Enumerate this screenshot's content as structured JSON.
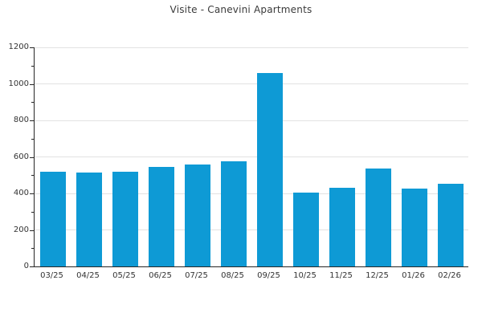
{
  "title": "Visite - Canevini Apartments",
  "colors": {
    "bar": "#0E9AD5",
    "grid": "#e2e2e2",
    "axis": "#262626",
    "text": "#333333",
    "title_text": "#3a3a3a",
    "background": "#ffffff"
  },
  "chart_data": {
    "type": "bar",
    "title": "Visite - Canevini Apartments",
    "categories": [
      "03/25",
      "04/25",
      "05/25",
      "06/25",
      "07/25",
      "08/25",
      "09/25",
      "10/25",
      "11/25",
      "12/25",
      "01/26",
      "02/26"
    ],
    "values": [
      520,
      515,
      520,
      545,
      560,
      575,
      1060,
      405,
      430,
      535,
      425,
      455
    ],
    "xlabel": "",
    "ylabel": "",
    "ylim": [
      0,
      1200
    ],
    "yticks_major": [
      0,
      200,
      400,
      600,
      800,
      1000,
      1200
    ],
    "yticks_minor": [
      100,
      300,
      500,
      700,
      900,
      1100
    ],
    "grid": "horizontal-major-only",
    "legend": "none"
  }
}
